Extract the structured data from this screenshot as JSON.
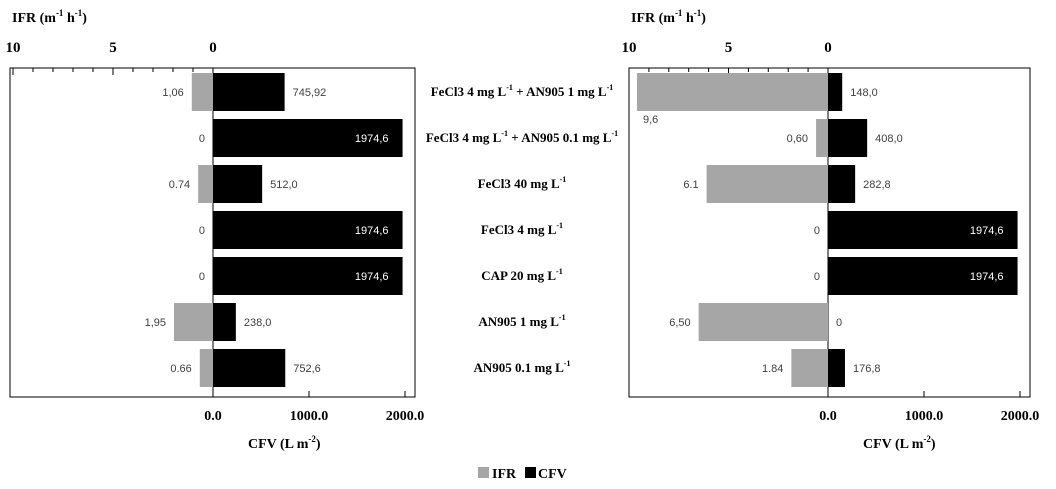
{
  "chart_data": {
    "type": "bar",
    "orientation": "horizontal-diverging",
    "categories": [
      "FeCl3 4 mg L-1 + AN905 1 mg L-1",
      "FeCl3 4 mg L-1 + AN905 0.1 mg L-1",
      "FeCl3 40 mg L-1",
      "FeCl3 4 mg L-1",
      "CAP 20 mg L-1",
      "AN905 1 mg L-1",
      "AN905 0.1 mg L-1"
    ],
    "category_labels": [
      {
        "base": "FeCl3 4 mg L",
        "sup": "-1",
        "mid": " + AN905   1 mg L",
        "sup2": "-1"
      },
      {
        "base": "FeCl3 4 mg L",
        "sup": "-1",
        "mid": " + AN905 0.1 mg L",
        "sup2": "-1"
      },
      {
        "base": "FeCl3 40 mg L",
        "sup": "-1"
      },
      {
        "base": "FeCl3 4 mg L",
        "sup": "-1"
      },
      {
        "base": "CAP 20 mg L",
        "sup": "-1"
      },
      {
        "base": "AN905 1 mg L",
        "sup": "-1"
      },
      {
        "base": "AN905 0.1 mg L",
        "sup": "-1"
      }
    ],
    "top_axis": {
      "label": "IFR (m",
      "label_sup1": "-1",
      "label_mid": " h",
      "label_sup2": "-1",
      "label_end": ")",
      "ticks": [
        "10",
        "5",
        "0"
      ],
      "range": [
        10,
        0
      ]
    },
    "bottom_axis": {
      "label": "CFV (L m",
      "label_sup": "-2",
      "label_end": ")",
      "ticks": [
        "0.0",
        "1000.0",
        "2000.0"
      ],
      "range": [
        0,
        2000
      ]
    },
    "legend": {
      "position": "bottom-center",
      "entries": [
        {
          "name": "IFR",
          "color": "#a6a6a6"
        },
        {
          "name": "CFV",
          "color": "#000000"
        }
      ]
    },
    "panels": [
      {
        "series": [
          {
            "name": "IFR",
            "values": [
              1.06,
              0,
              0.74,
              0,
              0,
              1.95,
              0.66
            ],
            "labels": [
              "1,06",
              "0",
              "0.74",
              "0",
              "0",
              "1,95",
              "0.66"
            ]
          },
          {
            "name": "CFV",
            "values": [
              745.92,
              1974.6,
              512.0,
              1974.6,
              1974.6,
              238.0,
              752.6
            ],
            "labels": [
              "745,92",
              "1974,6",
              "512,0",
              "1974,6",
              "1974,6",
              "238,0",
              "752,6"
            ]
          }
        ]
      },
      {
        "series": [
          {
            "name": "IFR",
            "values": [
              9.6,
              0.6,
              6.1,
              0,
              0,
              6.5,
              1.84
            ],
            "labels": [
              "9,6",
              "0,60",
              "6.1",
              "0",
              "0",
              "6,50",
              "1.84"
            ]
          },
          {
            "name": "CFV",
            "values": [
              148.0,
              408.0,
              282.8,
              1974.6,
              1974.6,
              0,
              176.8
            ],
            "labels": [
              "148,0",
              "408,0",
              "282,8",
              "1974,6",
              "1974,6",
              "0",
              "176,8"
            ]
          }
        ]
      }
    ]
  }
}
